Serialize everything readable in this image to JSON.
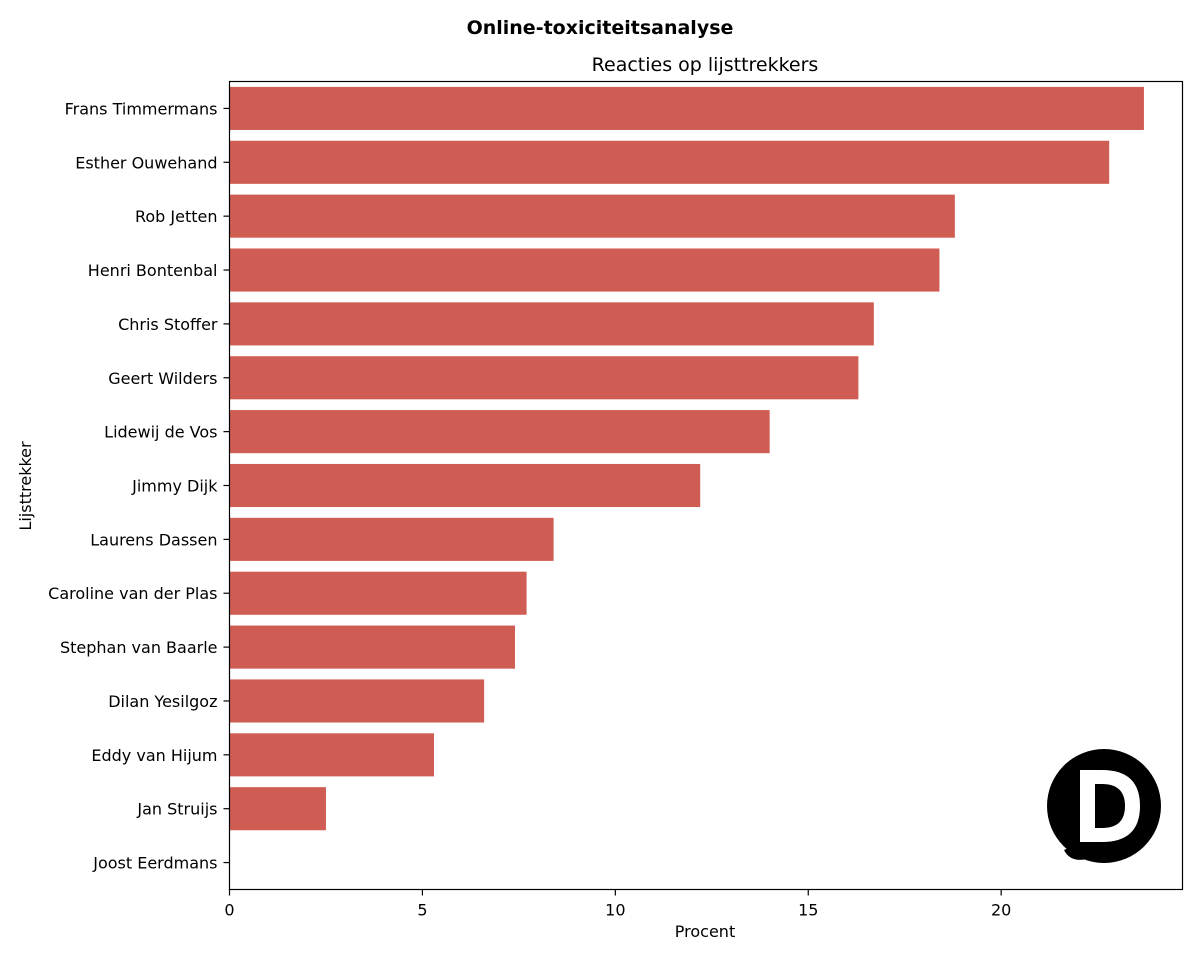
{
  "chart_data": {
    "type": "bar",
    "orientation": "horizontal",
    "suptitle": "Online-toxiciteitsanalyse",
    "title": "Reacties op lijsttrekkers",
    "xlabel": "Procent",
    "ylabel": "Lijsttrekker",
    "xlim": [
      0,
      24.7
    ],
    "xticks": [
      0,
      5,
      10,
      15,
      20
    ],
    "categories": [
      "Frans Timmermans",
      "Esther Ouwehand",
      "Rob Jetten",
      "Henri Bontenbal",
      "Chris Stoffer",
      "Geert Wilders",
      "Lidewij de Vos",
      "Jimmy Dijk",
      "Laurens Dassen",
      "Caroline van der Plas",
      "Stephan van Baarle",
      "Dilan Yesilgoz",
      "Eddy van Hijum",
      "Jan Struijs",
      "Joost Eerdmans"
    ],
    "values": [
      23.7,
      22.8,
      18.8,
      18.4,
      16.7,
      16.3,
      14.0,
      12.2,
      8.4,
      7.7,
      7.4,
      6.6,
      5.3,
      2.5,
      0.0
    ],
    "bar_color": "#d05d53",
    "grid": false,
    "legend": "none"
  },
  "logo": {
    "name": "d-logo-icon",
    "color": "#000000"
  }
}
